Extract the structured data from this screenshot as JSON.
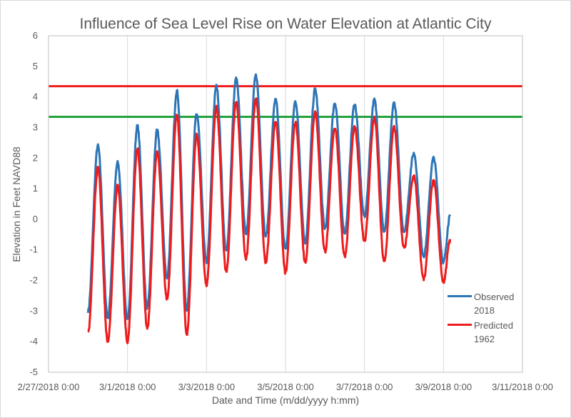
{
  "chart_data": {
    "type": "line",
    "title": "Influence of Sea Level Rise on Water Elevation at Atlantic City",
    "xlabel": "Date and Time (m/dd/yyyy h:mm)",
    "ylabel": "Elevation in Feet NAVD88",
    "x_tick_labels": [
      "2/27/2018 0:00",
      "3/1/2018 0:00",
      "3/3/2018 0:00",
      "3/5/2018 0:00",
      "3/7/2018 0:00",
      "3/9/2018 0:00",
      "3/11/2018 0:00"
    ],
    "x_range": [
      "2018-02-27 00:00",
      "2018-03-11 00:00"
    ],
    "y_ticks": [
      -5,
      -4,
      -3,
      -2,
      -1,
      0,
      1,
      2,
      3,
      4,
      5,
      6
    ],
    "ylim": [
      -5,
      6
    ],
    "grid": "vertical",
    "legend_position": "right",
    "reference_lines": [
      {
        "y": 4.35,
        "color": "#ee1c1c"
      },
      {
        "y": 3.35,
        "color": "#22a33a"
      }
    ],
    "series": [
      {
        "name": "Observed 2018",
        "color": "#2e75b6",
        "points": [
          [
            "2018-02-28 00:00",
            -3.0
          ],
          [
            "2018-02-28 06:00",
            2.4
          ],
          [
            "2018-02-28 12:00",
            -3.2
          ],
          [
            "2018-02-28 18:00",
            1.85
          ],
          [
            "2018-03-01 00:00",
            -3.3
          ],
          [
            "2018-03-01 06:00",
            3.05
          ],
          [
            "2018-03-01 12:00",
            -2.9
          ],
          [
            "2018-03-01 18:00",
            2.9
          ],
          [
            "2018-03-02 00:00",
            -1.9
          ],
          [
            "2018-03-02 06:00",
            4.2
          ],
          [
            "2018-03-02 12:00",
            -2.95
          ],
          [
            "2018-03-02 18:00",
            3.45
          ],
          [
            "2018-03-03 00:00",
            -1.4
          ],
          [
            "2018-03-03 06:00",
            4.35
          ],
          [
            "2018-03-03 12:00",
            -1.05
          ],
          [
            "2018-03-03 18:00",
            4.6
          ],
          [
            "2018-03-04 00:00",
            -0.45
          ],
          [
            "2018-03-04 06:00",
            4.7
          ],
          [
            "2018-03-04 12:00",
            -0.55
          ],
          [
            "2018-03-04 18:00",
            3.9
          ],
          [
            "2018-03-05 00:00",
            -1.0
          ],
          [
            "2018-03-05 06:00",
            3.85
          ],
          [
            "2018-03-05 12:00",
            -0.75
          ],
          [
            "2018-03-05 18:00",
            4.25
          ],
          [
            "2018-03-06 00:00",
            -0.3
          ],
          [
            "2018-03-06 06:00",
            3.8
          ],
          [
            "2018-03-06 12:00",
            -0.45
          ],
          [
            "2018-03-06 18:00",
            3.75
          ],
          [
            "2018-03-07 00:00",
            0.1
          ],
          [
            "2018-03-07 06:00",
            3.9
          ],
          [
            "2018-03-07 12:00",
            -0.4
          ],
          [
            "2018-03-07 18:00",
            3.8
          ],
          [
            "2018-03-08 00:00",
            -0.4
          ],
          [
            "2018-03-08 06:00",
            2.15
          ],
          [
            "2018-03-08 12:00",
            -1.2
          ],
          [
            "2018-03-08 18:00",
            2.0
          ],
          [
            "2018-03-09 00:00",
            -1.4
          ],
          [
            "2018-03-09 04:00",
            0.1
          ]
        ]
      },
      {
        "name": "Predicted 1962",
        "color": "#ee1c1c",
        "points": [
          [
            "2018-02-28 00:00",
            -3.7
          ],
          [
            "2018-02-28 06:00",
            1.7
          ],
          [
            "2018-02-28 12:00",
            -4.0
          ],
          [
            "2018-02-28 18:00",
            1.1
          ],
          [
            "2018-03-01 00:00",
            -4.0
          ],
          [
            "2018-03-01 06:00",
            2.3
          ],
          [
            "2018-03-01 12:00",
            -3.55
          ],
          [
            "2018-03-01 18:00",
            2.2
          ],
          [
            "2018-03-02 00:00",
            -2.6
          ],
          [
            "2018-03-02 06:00",
            3.4
          ],
          [
            "2018-03-02 12:00",
            -3.75
          ],
          [
            "2018-03-02 18:00",
            2.75
          ],
          [
            "2018-03-03 00:00",
            -2.15
          ],
          [
            "2018-03-03 06:00",
            3.65
          ],
          [
            "2018-03-03 12:00",
            -1.7
          ],
          [
            "2018-03-03 18:00",
            3.85
          ],
          [
            "2018-03-04 00:00",
            -1.3
          ],
          [
            "2018-03-04 06:00",
            3.95
          ],
          [
            "2018-03-04 12:00",
            -1.4
          ],
          [
            "2018-03-04 18:00",
            3.2
          ],
          [
            "2018-03-05 00:00",
            -1.75
          ],
          [
            "2018-03-05 06:00",
            3.15
          ],
          [
            "2018-03-05 12:00",
            -1.4
          ],
          [
            "2018-03-05 18:00",
            3.5
          ],
          [
            "2018-03-06 00:00",
            -1.05
          ],
          [
            "2018-03-06 06:00",
            3.0
          ],
          [
            "2018-03-06 12:00",
            -1.2
          ],
          [
            "2018-03-06 18:00",
            3.0
          ],
          [
            "2018-03-07 00:00",
            -0.7
          ],
          [
            "2018-03-07 06:00",
            3.3
          ],
          [
            "2018-03-07 12:00",
            -1.4
          ],
          [
            "2018-03-07 18:00",
            3.0
          ],
          [
            "2018-03-08 00:00",
            -0.95
          ],
          [
            "2018-03-08 06:00",
            1.4
          ],
          [
            "2018-03-08 12:00",
            -1.95
          ],
          [
            "2018-03-08 18:00",
            1.25
          ],
          [
            "2018-03-09 00:00",
            -2.05
          ],
          [
            "2018-03-09 04:00",
            -0.7
          ]
        ]
      }
    ]
  }
}
